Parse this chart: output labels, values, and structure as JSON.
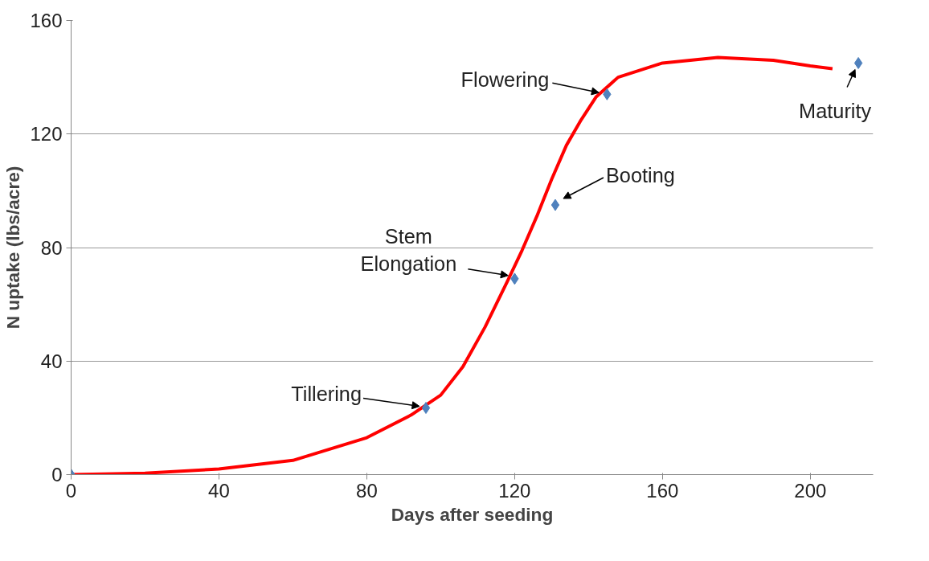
{
  "chart_data": {
    "type": "line",
    "xlabel": "Days after seeding",
    "ylabel": "N uptake (lbs/acre)",
    "xlim": [
      0,
      217
    ],
    "ylim": [
      0,
      160
    ],
    "xticks": [
      0,
      40,
      80,
      120,
      160,
      200
    ],
    "yticks": [
      0,
      40,
      80,
      120,
      160
    ],
    "grid": "y",
    "series": [
      {
        "color": "#ff0000",
        "marker": "none",
        "line_style": "solid",
        "x": [
          0,
          20,
          40,
          60,
          80,
          92,
          100,
          106,
          112,
          118,
          122,
          126,
          130,
          134,
          138,
          142,
          148,
          160,
          175,
          190,
          200,
          206
        ],
        "values": [
          0,
          0.5,
          2,
          5,
          13,
          21,
          28,
          38,
          52,
          68,
          79,
          91,
          104,
          116,
          125,
          133,
          140,
          145,
          147,
          146,
          144,
          143
        ]
      },
      {
        "type": "scatter",
        "color": "#4f81bd",
        "marker": "diamond",
        "x": [
          0,
          96,
          120,
          131,
          145,
          213
        ],
        "values": [
          0,
          23.5,
          69,
          95,
          134,
          145
        ]
      }
    ],
    "annotations": [
      {
        "text": "Tillering",
        "x": 96,
        "y": 23.5
      },
      {
        "text": "Stem Elongation",
        "x": 120,
        "y": 69
      },
      {
        "text": "Booting",
        "x": 131,
        "y": 95
      },
      {
        "text": "Flowering",
        "x": 145,
        "y": 134
      },
      {
        "text": "Maturity",
        "x": 213,
        "y": 145
      }
    ]
  }
}
